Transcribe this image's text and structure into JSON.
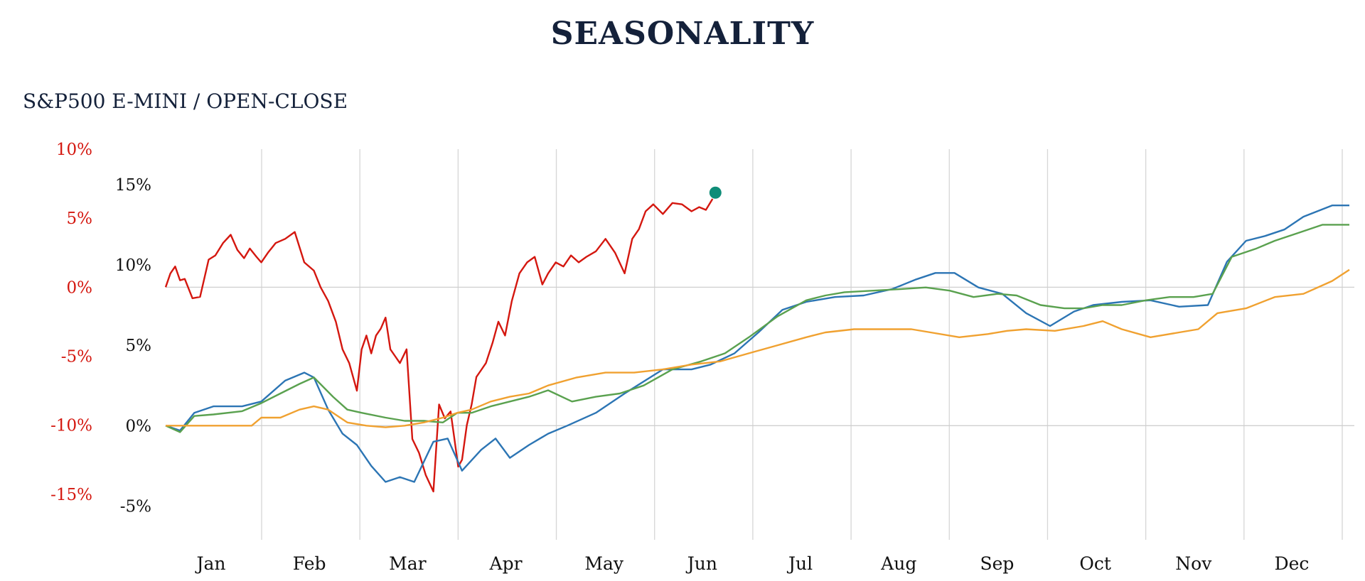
{
  "title": "SEASONALITY",
  "subtitle": "S&P500 E-MINI / OPEN-CLOSE",
  "chart_data": {
    "type": "line",
    "title": "SEASONALITY",
    "subtitle": "S&P500 E-MINI / OPEN-CLOSE",
    "x_categories": [
      "Jan",
      "Feb",
      "Mar",
      "Apr",
      "May",
      "Jun",
      "Jul",
      "Aug",
      "Sep",
      "Oct",
      "Nov",
      "Dec"
    ],
    "grid": true,
    "left_axis": {
      "ticks": [
        10,
        5,
        0,
        -5,
        -10,
        -15
      ],
      "tick_labels": [
        "10%",
        "5%",
        "0%",
        "-5%",
        "-10%",
        "-15%"
      ],
      "range": [
        -18.3,
        10
      ],
      "color": "#d4170f"
    },
    "right_axis": {
      "ticks": [
        15,
        10,
        5,
        0,
        -5
      ],
      "tick_labels": [
        "15%",
        "10%",
        "5%",
        "0%",
        "-5%"
      ],
      "range": [
        -7.1,
        17.2
      ],
      "color": "#111111"
    },
    "series": [
      {
        "axis": "left",
        "color": "#d4170f",
        "x": [
          0,
          0.05,
          0.1,
          0.15,
          0.2,
          0.28,
          0.36,
          0.45,
          0.52,
          0.6,
          0.68,
          0.75,
          0.82,
          0.88,
          0.95,
          1.0,
          1.07,
          1.15,
          1.25,
          1.35,
          1.45,
          1.55,
          1.62,
          1.7,
          1.78,
          1.85,
          1.92,
          2.0,
          2.05,
          2.1,
          2.15,
          2.2,
          2.25,
          2.3,
          2.35,
          2.4,
          2.45,
          2.52,
          2.58,
          2.65,
          2.72,
          2.8,
          2.86,
          2.92,
          2.98,
          3.02,
          3.06,
          3.1,
          3.15,
          3.2,
          3.25,
          3.3,
          3.35,
          3.42,
          3.48,
          3.55,
          3.62,
          3.7,
          3.78,
          3.86,
          3.94,
          4.0,
          4.08,
          4.16,
          4.24,
          4.32,
          4.4,
          4.5,
          4.6,
          4.7,
          4.8,
          4.88,
          4.95,
          5.02,
          5.1,
          5.2,
          5.3,
          5.4,
          5.5,
          5.58,
          5.65,
          5.72
        ],
        "y": [
          0,
          1,
          1.5,
          0.5,
          0.6,
          -0.8,
          -0.7,
          2,
          2.3,
          3.2,
          3.8,
          2.7,
          2.1,
          2.8,
          2.2,
          1.8,
          2.5,
          3.2,
          3.5,
          4,
          1.8,
          1.2,
          0,
          -1,
          -2.5,
          -4.5,
          -5.5,
          -7.5,
          -4.5,
          -3.5,
          -4.8,
          -3.5,
          -3,
          -2.2,
          -4.5,
          -5,
          -5.5,
          -4.5,
          -11,
          -12,
          -13.6,
          -14.8,
          -8.5,
          -9.5,
          -9,
          -11,
          -13,
          -12.5,
          -10,
          -8.5,
          -6.5,
          -6,
          -5.5,
          -4,
          -2.5,
          -3.5,
          -1,
          1,
          1.8,
          2.2,
          0.2,
          1,
          1.8,
          1.5,
          2.3,
          1.8,
          2.2,
          2.6,
          3.5,
          2.5,
          1,
          3.5,
          4.2,
          5.5,
          6,
          5.3,
          6.1,
          6,
          5.5,
          5.8,
          5.6,
          6.4
        ]
      },
      {
        "axis": "right",
        "color": "#2c75b4",
        "x": [
          0,
          0.15,
          0.3,
          0.5,
          0.8,
          1.0,
          1.25,
          1.45,
          1.55,
          1.7,
          1.85,
          2.0,
          2.15,
          2.3,
          2.45,
          2.6,
          2.8,
          2.95,
          3.1,
          3.3,
          3.45,
          3.6,
          3.8,
          4.0,
          4.2,
          4.5,
          4.8,
          5.2,
          5.5,
          5.7,
          5.95,
          6.2,
          6.45,
          6.7,
          7.0,
          7.3,
          7.6,
          7.85,
          8.05,
          8.25,
          8.5,
          8.75,
          9.0,
          9.25,
          9.5,
          9.7,
          10.0,
          10.3,
          10.6,
          10.9,
          11.1,
          11.3,
          11.5,
          11.7,
          11.9,
          12.2,
          12.38
        ],
        "y": [
          0,
          -0.3,
          0.8,
          1.2,
          1.2,
          1.5,
          2.8,
          3.3,
          3.0,
          1.0,
          -0.5,
          -1.2,
          -2.5,
          -3.5,
          -3.2,
          -3.5,
          -1.0,
          -0.8,
          -2.8,
          -1.5,
          -0.8,
          -2.0,
          -1.2,
          -0.5,
          0,
          0.8,
          2.0,
          3.5,
          3.5,
          3.8,
          4.5,
          5.8,
          7.2,
          7.7,
          8.0,
          8.1,
          8.5,
          9.1,
          9.5,
          9.5,
          8.6,
          8.2,
          7.0,
          6.2,
          7.1,
          7.5,
          7.7,
          7.8,
          7.4,
          7.5,
          10.2,
          11.5,
          11.8,
          12.2,
          13.0,
          13.7,
          13.7
        ]
      },
      {
        "axis": "right",
        "color": "#5aa14f",
        "x": [
          0,
          0.15,
          0.3,
          0.5,
          0.8,
          1.0,
          1.2,
          1.4,
          1.55,
          1.75,
          1.9,
          2.05,
          2.3,
          2.5,
          2.7,
          2.9,
          3.05,
          3.2,
          3.4,
          3.6,
          3.8,
          4.0,
          4.25,
          4.5,
          4.75,
          5.0,
          5.3,
          5.6,
          5.85,
          6.1,
          6.4,
          6.7,
          6.9,
          7.1,
          7.4,
          7.7,
          7.95,
          8.2,
          8.45,
          8.7,
          8.9,
          9.15,
          9.4,
          9.6,
          9.8,
          10.0,
          10.25,
          10.5,
          10.75,
          10.95,
          11.15,
          11.4,
          11.6,
          11.85,
          12.1,
          12.3,
          12.38
        ],
        "y": [
          0,
          -0.4,
          0.6,
          0.7,
          0.9,
          1.4,
          2.0,
          2.6,
          3.0,
          1.8,
          1.0,
          0.8,
          0.5,
          0.3,
          0.3,
          0.2,
          0.8,
          0.8,
          1.2,
          1.5,
          1.8,
          2.2,
          1.5,
          1.8,
          2.0,
          2.5,
          3.5,
          4.0,
          4.5,
          5.5,
          6.8,
          7.8,
          8.1,
          8.3,
          8.4,
          8.5,
          8.6,
          8.4,
          8.0,
          8.2,
          8.1,
          7.5,
          7.3,
          7.3,
          7.5,
          7.5,
          7.8,
          8.0,
          8.0,
          8.2,
          10.5,
          11.0,
          11.5,
          12.0,
          12.5,
          12.5,
          12.5
        ]
      },
      {
        "axis": "right",
        "color": "#f0a130",
        "x": [
          0,
          0.3,
          0.6,
          0.9,
          1.0,
          1.2,
          1.4,
          1.55,
          1.7,
          1.9,
          2.1,
          2.3,
          2.5,
          2.7,
          2.9,
          3.05,
          3.2,
          3.4,
          3.6,
          3.8,
          4.0,
          4.3,
          4.6,
          4.9,
          5.2,
          5.5,
          5.8,
          6.1,
          6.4,
          6.7,
          6.9,
          7.2,
          7.5,
          7.8,
          8.0,
          8.3,
          8.6,
          8.8,
          9.0,
          9.3,
          9.6,
          9.8,
          10.0,
          10.3,
          10.6,
          10.8,
          11.0,
          11.3,
          11.6,
          11.9,
          12.2,
          12.38
        ],
        "y": [
          0,
          0,
          0,
          0,
          0.5,
          0.5,
          1.0,
          1.2,
          1.0,
          0.2,
          0,
          -0.1,
          0,
          0.2,
          0.5,
          0.8,
          1.0,
          1.5,
          1.8,
          2.0,
          2.5,
          3.0,
          3.3,
          3.3,
          3.5,
          3.8,
          4.0,
          4.5,
          5.0,
          5.5,
          5.8,
          6.0,
          6.0,
          6.0,
          5.8,
          5.5,
          5.7,
          5.9,
          6.0,
          5.9,
          6.2,
          6.5,
          6.0,
          5.5,
          5.8,
          6.0,
          7.0,
          7.3,
          8.0,
          8.2,
          9.0,
          9.7
        ]
      }
    ],
    "end_marker": {
      "axis": "left",
      "x": 5.72,
      "y": 6.85,
      "color": "#0f8d78"
    }
  }
}
